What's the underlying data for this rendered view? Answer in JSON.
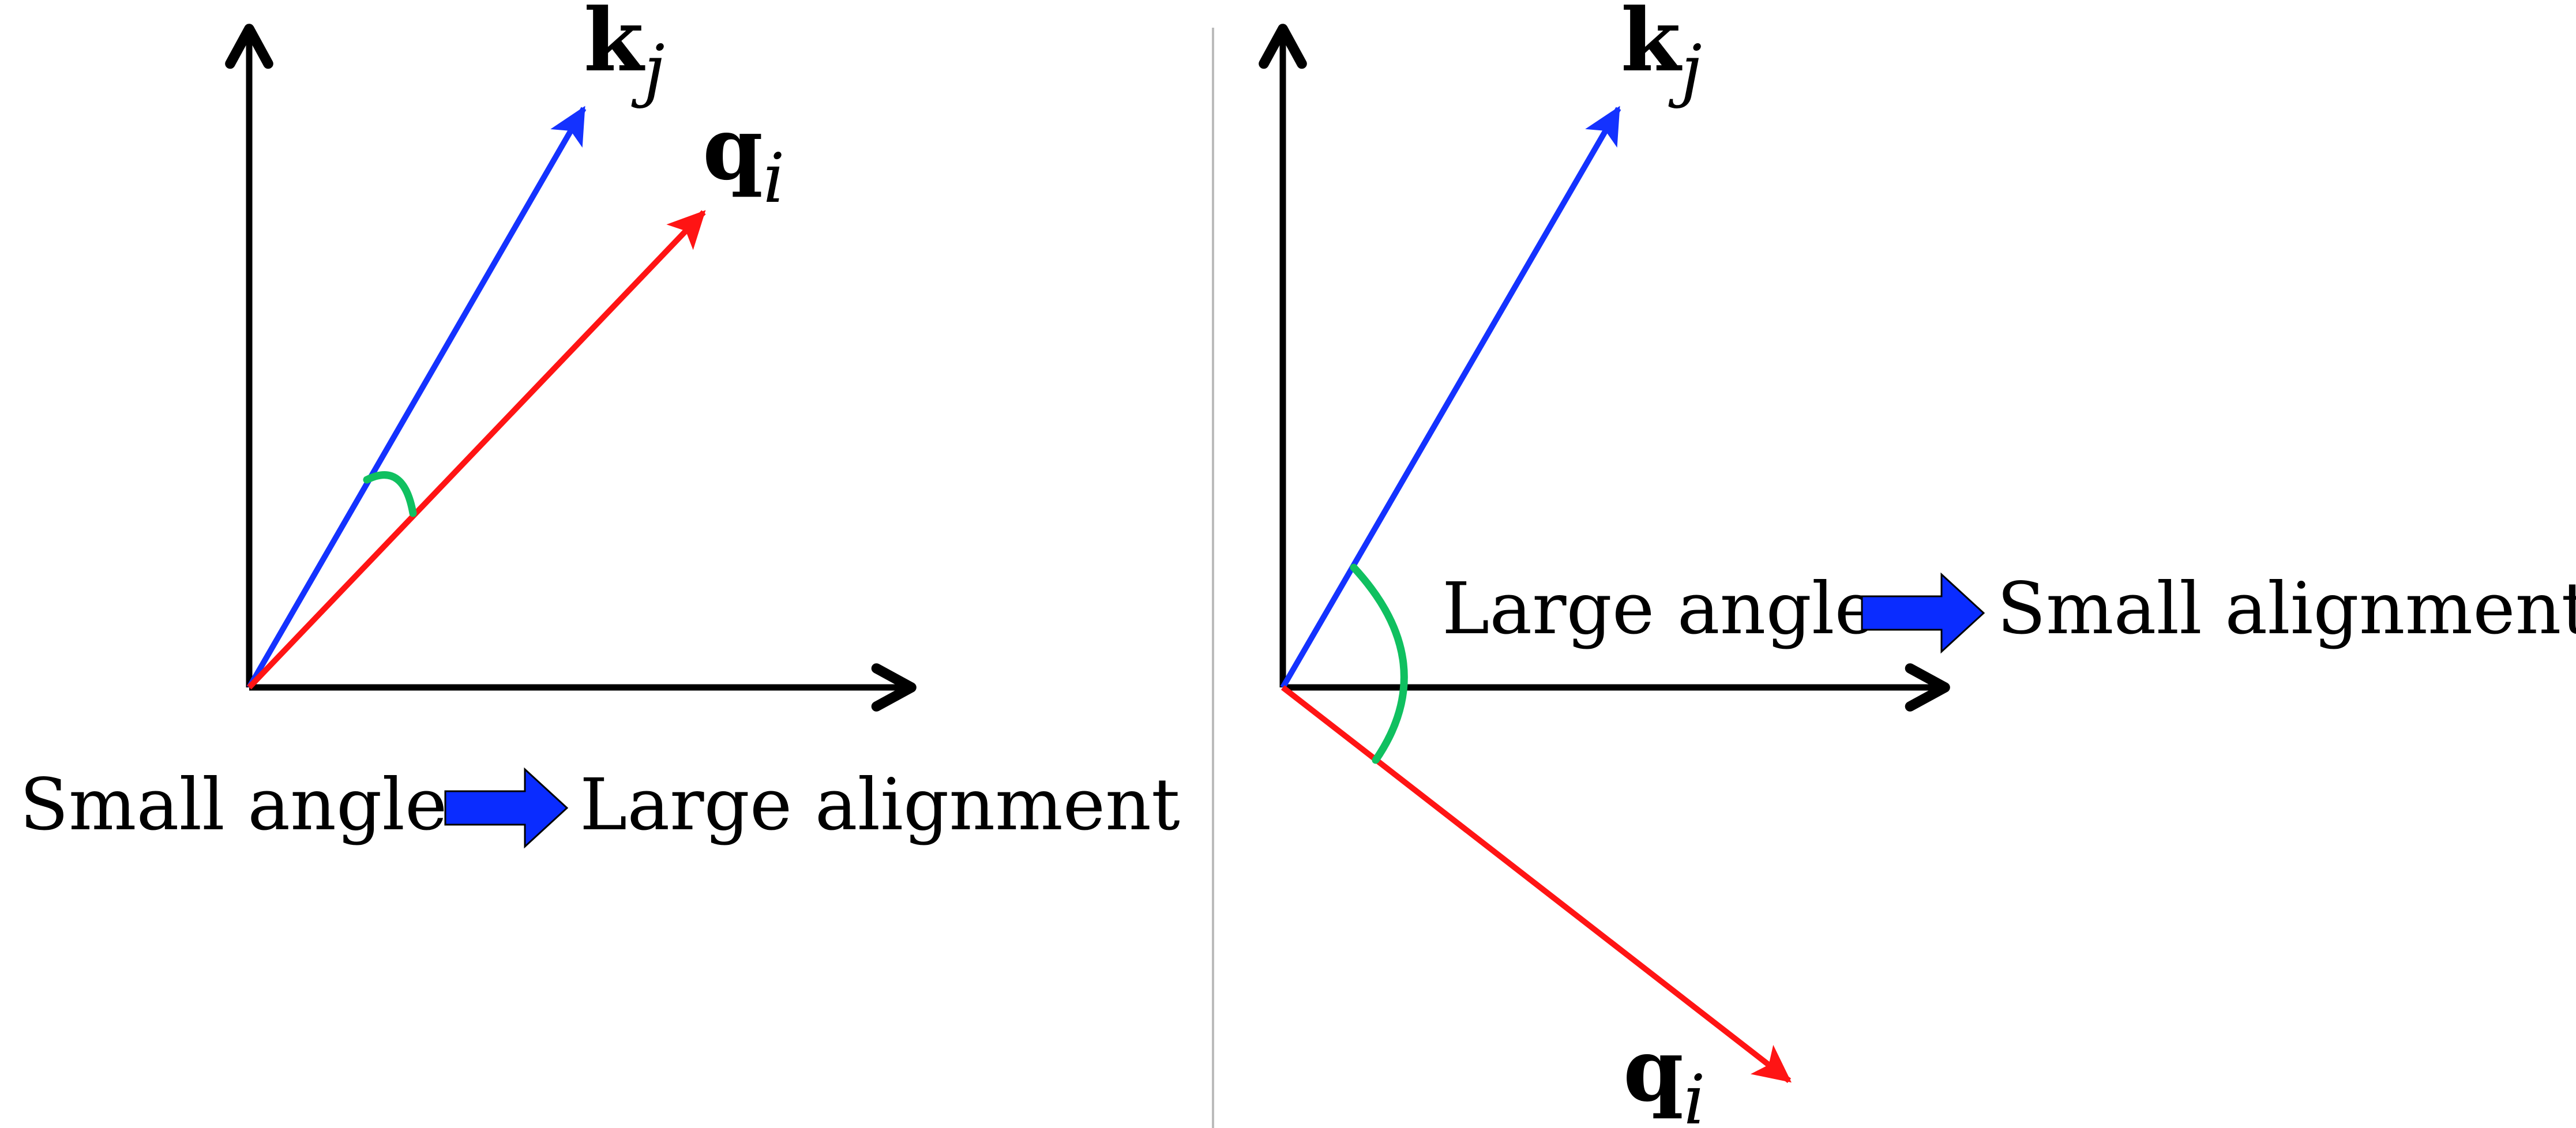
{
  "colors": {
    "axis": "#000000",
    "key_vector": "#1432ff",
    "query_vector": "#ff1414",
    "angle_arc": "#10c060",
    "implies_arrow": "#0a2cff",
    "divider": "#bbbbbb"
  },
  "left_panel": {
    "key_label": {
      "symbol": "k",
      "subscript": "j"
    },
    "query_label": {
      "symbol": "q",
      "subscript": "i"
    },
    "caption": {
      "angle_text": "Small angle",
      "result_text": "Large alignment"
    }
  },
  "right_panel": {
    "key_label": {
      "symbol": "k",
      "subscript": "j"
    },
    "query_label": {
      "symbol": "q",
      "subscript": "i"
    },
    "caption": {
      "angle_text": "Large angle",
      "result_text": "Small alignment"
    }
  }
}
